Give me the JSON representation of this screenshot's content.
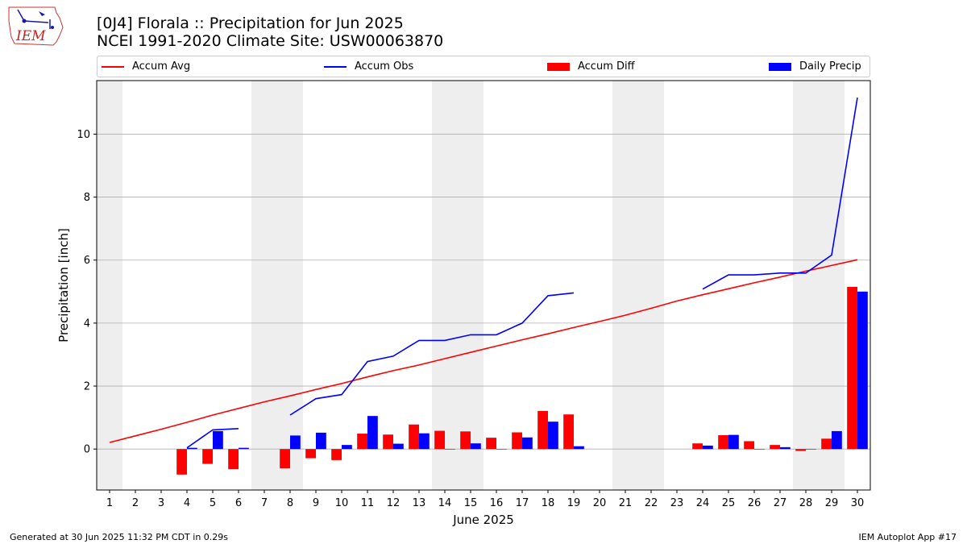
{
  "header": {
    "title_line1": "[0J4] Florala :: Precipitation for Jun 2025",
    "title_line2": "NCEI 1991-2020 Climate Site: USW00063870",
    "logo_text": "IEM"
  },
  "legend": [
    {
      "label": "Accum Avg",
      "kind": "line",
      "color": "#ff0000"
    },
    {
      "label": "Accum Obs",
      "kind": "line",
      "color": "#0000ff"
    },
    {
      "label": "Accum Diff",
      "kind": "box",
      "color": "#ff0000"
    },
    {
      "label": "Daily Precip",
      "kind": "box",
      "color": "#0000ff"
    }
  ],
  "chart_data": {
    "type": "bar",
    "xlabel": "June 2025",
    "ylabel": "Precipitation [inch]",
    "ylim": [
      -1.3,
      11.7
    ],
    "yticks": [
      0,
      2,
      4,
      6,
      8,
      10
    ],
    "x": [
      1,
      2,
      3,
      4,
      5,
      6,
      7,
      8,
      9,
      10,
      11,
      12,
      13,
      14,
      15,
      16,
      17,
      18,
      19,
      20,
      21,
      22,
      23,
      24,
      25,
      26,
      27,
      28,
      29,
      30
    ],
    "weekend_days": [
      1,
      7,
      8,
      14,
      15,
      21,
      22,
      28,
      29
    ],
    "grid": "horizontal",
    "legend_position": "top",
    "colors": {
      "avg": "#ff0000",
      "obs": "#0000ff",
      "weekend_shade": "#eeeeee",
      "grid": "#b0b0b0"
    },
    "series": [
      {
        "name": "Accum Avg",
        "type": "line",
        "values": [
          0.21,
          0.42,
          0.63,
          0.85,
          1.08,
          1.29,
          1.5,
          1.69,
          1.89,
          2.08,
          2.29,
          2.49,
          2.67,
          2.87,
          3.07,
          3.27,
          3.47,
          3.66,
          3.86,
          4.05,
          4.25,
          4.47,
          4.7,
          4.9,
          5.09,
          5.28,
          5.46,
          5.65,
          5.83,
          6.01
        ]
      },
      {
        "name": "Accum Obs",
        "type": "line",
        "values": [
          null,
          null,
          null,
          0.04,
          0.61,
          0.65,
          null,
          1.08,
          1.6,
          1.73,
          2.78,
          2.95,
          3.45,
          3.45,
          3.63,
          3.63,
          4.0,
          4.87,
          4.96,
          null,
          null,
          null,
          null,
          5.08,
          5.53,
          5.53,
          5.59,
          5.59,
          6.16,
          11.16
        ]
      },
      {
        "name": "Accum Diff",
        "type": "bar",
        "values": [
          null,
          null,
          null,
          -0.81,
          -0.47,
          -0.64,
          null,
          -0.61,
          -0.29,
          -0.35,
          0.49,
          0.46,
          0.78,
          0.58,
          0.56,
          0.36,
          0.53,
          1.21,
          1.1,
          null,
          null,
          null,
          null,
          0.18,
          0.44,
          0.25,
          0.13,
          -0.06,
          0.33,
          5.15
        ]
      },
      {
        "name": "Daily Precip",
        "type": "bar",
        "values": [
          null,
          null,
          null,
          0.04,
          0.57,
          0.04,
          null,
          0.43,
          0.52,
          0.13,
          1.05,
          0.17,
          0.5,
          0.0,
          0.18,
          0.0,
          0.37,
          0.87,
          0.09,
          null,
          null,
          null,
          null,
          0.11,
          0.45,
          0.0,
          0.06,
          0.0,
          0.57,
          5.0
        ]
      }
    ]
  },
  "footer": {
    "generated": "Generated at 30 Jun 2025 11:32 PM CDT in 0.29s",
    "app": "IEM Autoplot App #17"
  }
}
